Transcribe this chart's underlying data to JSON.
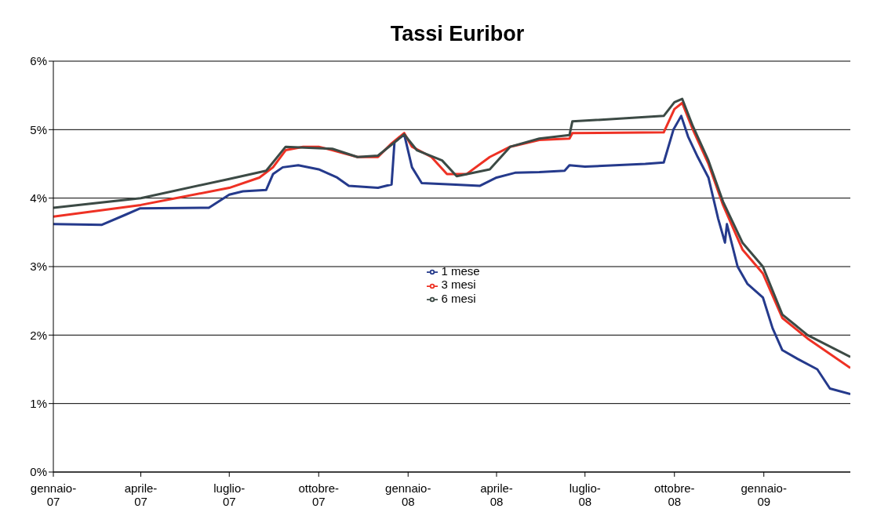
{
  "chart_data": {
    "type": "line",
    "title": "Tassi Euribor",
    "xlim": [
      "2007-01-01",
      "2009-03-31"
    ],
    "xticks": [
      {
        "value": "2007-01-01",
        "label": "gennaio-07"
      },
      {
        "value": "2007-04-01",
        "label": "aprile-07"
      },
      {
        "value": "2007-07-01",
        "label": "luglio-07"
      },
      {
        "value": "2007-10-01",
        "label": "ottobre-07"
      },
      {
        "value": "2008-01-01",
        "label": "gennaio-08"
      },
      {
        "value": "2008-04-01",
        "label": "aprile-08"
      },
      {
        "value": "2008-07-01",
        "label": "luglio-08"
      },
      {
        "value": "2008-10-01",
        "label": "ottobre-08"
      },
      {
        "value": "2009-01-01",
        "label": "gennaio-09"
      }
    ],
    "ylim": [
      0,
      6
    ],
    "yticks": [
      {
        "value": 0,
        "label": "0%"
      },
      {
        "value": 1,
        "label": "1%"
      },
      {
        "value": 2,
        "label": "2%"
      },
      {
        "value": 3,
        "label": "3%"
      },
      {
        "value": 4,
        "label": "4%"
      },
      {
        "value": 5,
        "label": "5%"
      },
      {
        "value": 6,
        "label": "6%"
      }
    ],
    "grid": "y",
    "legend": "center",
    "marker": "none",
    "line_style": "solid",
    "series": [
      {
        "name": "1 mese",
        "color": "#253a8c",
        "x": [
          "2007-01-01",
          "2007-02-20",
          "2007-03-15",
          "2007-03-31",
          "2007-06-10",
          "2007-07-01",
          "2007-07-15",
          "2007-08-08",
          "2007-08-15",
          "2007-08-25",
          "2007-09-10",
          "2007-10-01",
          "2007-10-20",
          "2007-11-01",
          "2007-12-01",
          "2007-12-15",
          "2007-12-18",
          "2007-12-28",
          "2008-01-05",
          "2008-01-15",
          "2008-02-15",
          "2008-03-15",
          "2008-04-01",
          "2008-04-20",
          "2008-05-15",
          "2008-06-10",
          "2008-06-15",
          "2008-07-01",
          "2008-08-01",
          "2008-09-01",
          "2008-09-20",
          "2008-09-30",
          "2008-10-08",
          "2008-10-15",
          "2008-10-25",
          "2008-11-05",
          "2008-11-15",
          "2008-11-22",
          "2008-11-24",
          "2008-12-05",
          "2008-12-15",
          "2008-12-31",
          "2009-01-10",
          "2009-01-20",
          "2009-02-05",
          "2009-02-25",
          "2009-03-10",
          "2009-03-31"
        ],
        "values": [
          3.62,
          3.61,
          3.75,
          3.85,
          3.86,
          4.05,
          4.1,
          4.12,
          4.35,
          4.45,
          4.48,
          4.42,
          4.3,
          4.18,
          4.15,
          4.2,
          4.82,
          4.93,
          4.45,
          4.22,
          4.2,
          4.18,
          4.3,
          4.37,
          4.38,
          4.4,
          4.48,
          4.46,
          4.48,
          4.5,
          4.52,
          5.0,
          5.2,
          4.9,
          4.6,
          4.3,
          3.7,
          3.35,
          3.62,
          3.0,
          2.75,
          2.55,
          2.1,
          1.78,
          1.65,
          1.5,
          1.22,
          1.14
        ]
      },
      {
        "name": "3 mesi",
        "color": "#ee3124",
        "x": [
          "2007-01-01",
          "2007-04-01",
          "2007-07-01",
          "2007-08-01",
          "2007-08-15",
          "2007-08-28",
          "2007-09-15",
          "2007-10-01",
          "2007-10-15",
          "2007-11-10",
          "2007-12-01",
          "2007-12-15",
          "2007-12-28",
          "2008-01-05",
          "2008-01-25",
          "2008-02-10",
          "2008-03-01",
          "2008-03-25",
          "2008-04-15",
          "2008-05-15",
          "2008-06-15",
          "2008-06-18",
          "2008-09-20",
          "2008-10-01",
          "2008-10-09",
          "2008-10-20",
          "2008-11-05",
          "2008-11-20",
          "2008-12-10",
          "2008-12-31",
          "2009-01-20",
          "2009-02-15",
          "2009-03-31"
        ],
        "values": [
          3.73,
          3.9,
          4.15,
          4.3,
          4.45,
          4.7,
          4.75,
          4.75,
          4.7,
          4.6,
          4.6,
          4.8,
          4.95,
          4.75,
          4.6,
          4.35,
          4.35,
          4.6,
          4.75,
          4.85,
          4.87,
          4.95,
          4.96,
          5.3,
          5.39,
          5.0,
          4.5,
          3.9,
          3.25,
          2.9,
          2.25,
          1.95,
          1.52
        ]
      },
      {
        "name": "6 mesi",
        "color": "#3c4a45",
        "x": [
          "2007-01-01",
          "2007-04-01",
          "2007-07-01",
          "2007-08-08",
          "2007-08-28",
          "2007-10-15",
          "2007-11-10",
          "2007-12-01",
          "2007-12-28",
          "2008-01-10",
          "2008-02-05",
          "2008-02-20",
          "2008-03-25",
          "2008-04-15",
          "2008-05-15",
          "2008-06-15",
          "2008-06-18",
          "2008-09-20",
          "2008-10-01",
          "2008-10-09",
          "2008-10-20",
          "2008-11-05",
          "2008-11-20",
          "2008-12-10",
          "2008-12-31",
          "2009-01-20",
          "2009-02-15",
          "2009-03-31"
        ],
        "values": [
          3.86,
          4.0,
          4.28,
          4.4,
          4.75,
          4.72,
          4.6,
          4.62,
          4.93,
          4.7,
          4.55,
          4.32,
          4.42,
          4.75,
          4.87,
          4.92,
          5.12,
          5.2,
          5.4,
          5.45,
          5.05,
          4.55,
          3.95,
          3.35,
          3.0,
          2.3,
          2.0,
          1.68
        ]
      }
    ]
  }
}
